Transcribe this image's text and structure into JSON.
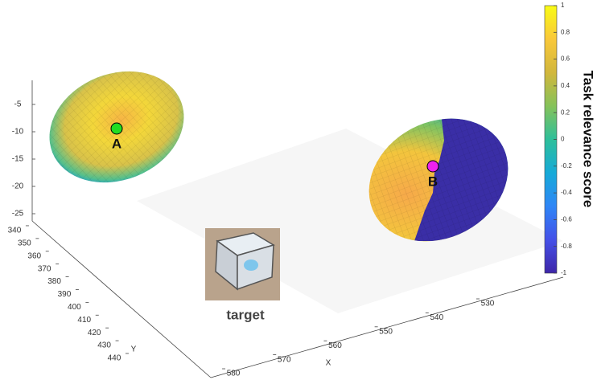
{
  "chart_data": {
    "type": "surface3d",
    "xlabel": "X",
    "ylabel": "Y",
    "xlim": [
      520,
      582
    ],
    "xticks": [
      530,
      540,
      550,
      560,
      570,
      580
    ],
    "ylim": [
      336,
      446
    ],
    "yticks": [
      340,
      350,
      360,
      370,
      380,
      390,
      400,
      410,
      420,
      430,
      440
    ],
    "zlim": [
      -28,
      -2
    ],
    "zticks": [
      -5,
      -10,
      -15,
      -20,
      -25
    ],
    "colorbar": {
      "label": "Task relevance score",
      "lim": [
        -1,
        1
      ],
      "ticks": [
        1,
        0.8,
        0.6,
        0.4,
        0.2,
        0,
        -0.2,
        -0.4,
        -0.6,
        -0.8,
        -1
      ],
      "colormap": [
        "#3e26a8",
        "#4450e8",
        "#2f86f6",
        "#16aad8",
        "#2ebf9a",
        "#86c25a",
        "#d2b73c",
        "#f9c83a",
        "#f9fb15"
      ]
    },
    "points": [
      {
        "label": "A",
        "color": "#22dd22"
      },
      {
        "label": "B",
        "color": "#ee22ee"
      }
    ],
    "target_label": "target"
  }
}
